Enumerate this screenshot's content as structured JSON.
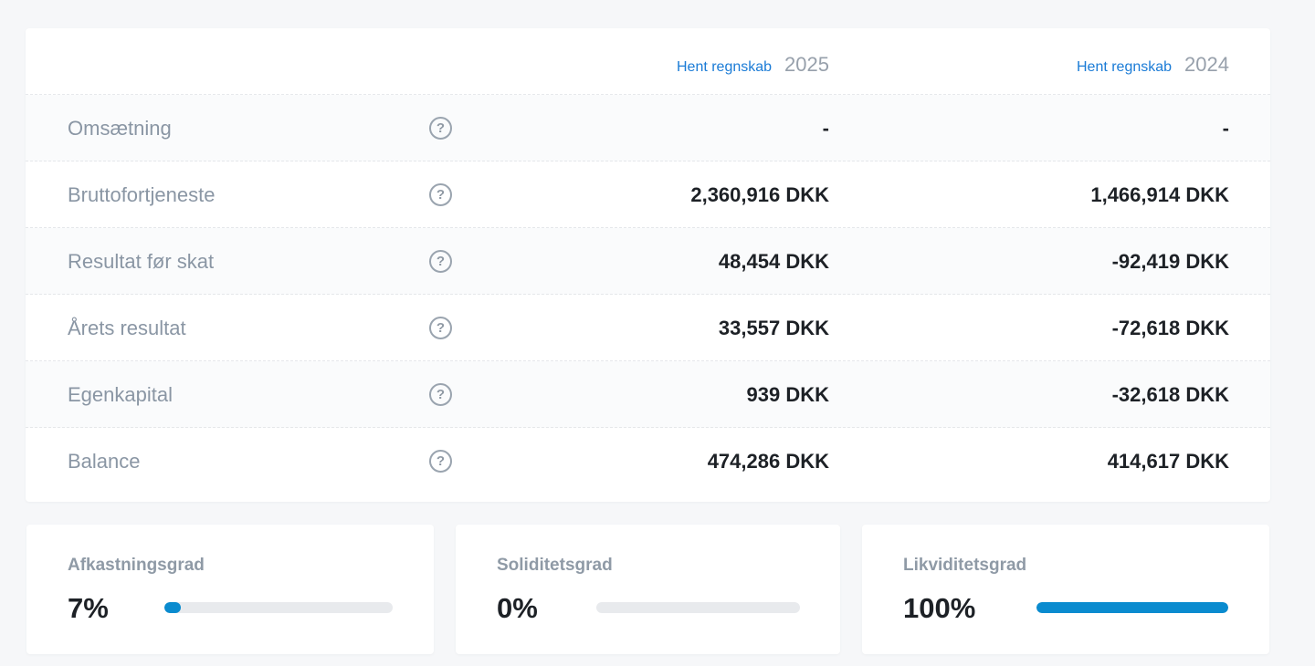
{
  "columns": [
    {
      "link": "Hent regnskab",
      "year": "2025"
    },
    {
      "link": "Hent regnskab",
      "year": "2024"
    }
  ],
  "rows": [
    {
      "label": "Omsætning",
      "v2025": "-",
      "v2024": "-"
    },
    {
      "label": "Bruttofortjeneste",
      "v2025": "2,360,916 DKK",
      "v2024": "1,466,914 DKK"
    },
    {
      "label": "Resultat før skat",
      "v2025": "48,454 DKK",
      "v2024": "-92,419 DKK"
    },
    {
      "label": "Årets resultat",
      "v2025": "33,557 DKK",
      "v2024": "-72,618 DKK"
    },
    {
      "label": "Egenkapital",
      "v2025": "939 DKK",
      "v2024": "-32,618 DKK"
    },
    {
      "label": "Balance",
      "v2025": "474,286 DKK",
      "v2024": "414,617 DKK"
    }
  ],
  "help_glyph": "?",
  "kpis": [
    {
      "title": "Afkastningsgrad",
      "value": "7%",
      "fraction": 0.07
    },
    {
      "title": "Soliditetsgrad",
      "value": "0%",
      "fraction": 0.0
    },
    {
      "title": "Likviditetsgrad",
      "value": "100%",
      "fraction": 1.0
    }
  ],
  "colors": {
    "link": "#1a7bd6",
    "progress_fill": "#0a8bcf",
    "progress_track": "#e8eaed"
  }
}
